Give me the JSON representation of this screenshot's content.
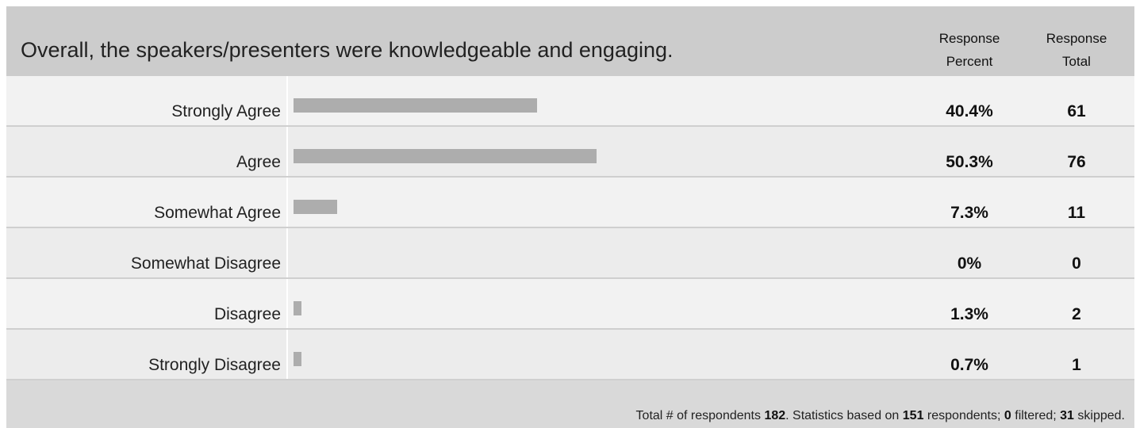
{
  "question": "Overall, the speakers/presenters were knowledgeable and engaging.",
  "columns": {
    "percent": "Response Percent",
    "total": "Response Total"
  },
  "chart_data": {
    "type": "bar",
    "orientation": "horizontal",
    "categories": [
      "Strongly Agree",
      "Agree",
      "Somewhat Agree",
      "Somewhat Disagree",
      "Disagree",
      "Strongly Disagree"
    ],
    "values": [
      40.4,
      50.3,
      7.3,
      0,
      1.3,
      0.7
    ],
    "value_labels": [
      "40.4%",
      "50.3%",
      "7.3%",
      "0%",
      "1.3%",
      "0.7%"
    ],
    "totals": [
      "61",
      "76",
      "11",
      "0",
      "2",
      "1"
    ],
    "xlim": [
      0,
      100
    ],
    "grid": false,
    "bar_color": "#adadad"
  },
  "footer": {
    "t1": "Total # of respondents ",
    "respondents": "182",
    "t2": ". Statistics based on ",
    "based_on": "151",
    "t3": " respondents; ",
    "filtered": "0",
    "t4": " filtered; ",
    "skipped": "31",
    "t5": " skipped."
  }
}
